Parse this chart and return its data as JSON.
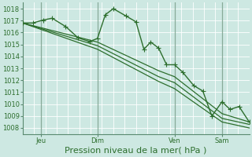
{
  "title": "Pression niveau de la mer( hPa )",
  "background_color": "#cde8e2",
  "grid_color": "#b0d8d0",
  "line_color": "#2d6e2d",
  "marker_color": "#2d6e2d",
  "ylim": [
    1007.5,
    1018.5
  ],
  "yticks": [
    1008,
    1009,
    1010,
    1011,
    1012,
    1013,
    1014,
    1015,
    1016,
    1017,
    1018
  ],
  "xlim": [
    0,
    1
  ],
  "xtick_positions": [
    0.08,
    0.33,
    0.67,
    0.88
  ],
  "xtick_labels": [
    "Jeu",
    "Dim",
    "Ven",
    "Sam"
  ],
  "series": [
    {
      "x": [
        0.0,
        0.045,
        0.09,
        0.13,
        0.19,
        0.245,
        0.295,
        0.33,
        0.365,
        0.4,
        0.455,
        0.5,
        0.535,
        0.565,
        0.6,
        0.635,
        0.67,
        0.705,
        0.755,
        0.795,
        0.835,
        0.88,
        0.915,
        0.955,
        1.0
      ],
      "y": [
        1016.8,
        1016.8,
        1017.05,
        1017.2,
        1016.5,
        1015.55,
        1015.25,
        1015.5,
        1017.5,
        1018.0,
        1017.4,
        1016.9,
        1014.6,
        1015.2,
        1014.7,
        1013.3,
        1013.3,
        1012.7,
        1011.55,
        1011.1,
        1009.0,
        1010.2,
        1009.55,
        1009.8,
        1008.5
      ],
      "marker": "+",
      "markersize": 4.0,
      "linewidth": 1.0
    },
    {
      "x": [
        0.0,
        0.33,
        0.6,
        0.67,
        0.88,
        1.0
      ],
      "y": [
        1016.8,
        1015.2,
        1012.8,
        1012.3,
        1009.2,
        1008.5
      ],
      "marker": null,
      "markersize": null,
      "linewidth": 0.9
    },
    {
      "x": [
        0.0,
        0.33,
        0.6,
        0.67,
        0.88,
        1.0
      ],
      "y": [
        1016.8,
        1014.9,
        1012.3,
        1011.8,
        1008.8,
        1008.3
      ],
      "marker": null,
      "markersize": null,
      "linewidth": 0.9
    },
    {
      "x": [
        0.0,
        0.33,
        0.6,
        0.67,
        0.88,
        1.0
      ],
      "y": [
        1016.8,
        1014.6,
        1011.9,
        1011.3,
        1008.5,
        1008.0
      ],
      "marker": null,
      "markersize": null,
      "linewidth": 0.9
    }
  ],
  "vlines_x": [
    0.08,
    0.33,
    0.67,
    0.88
  ],
  "vline_color": "#5a8a70",
  "tick_fontsize": 6.0,
  "xlabel_fontsize": 8.0
}
